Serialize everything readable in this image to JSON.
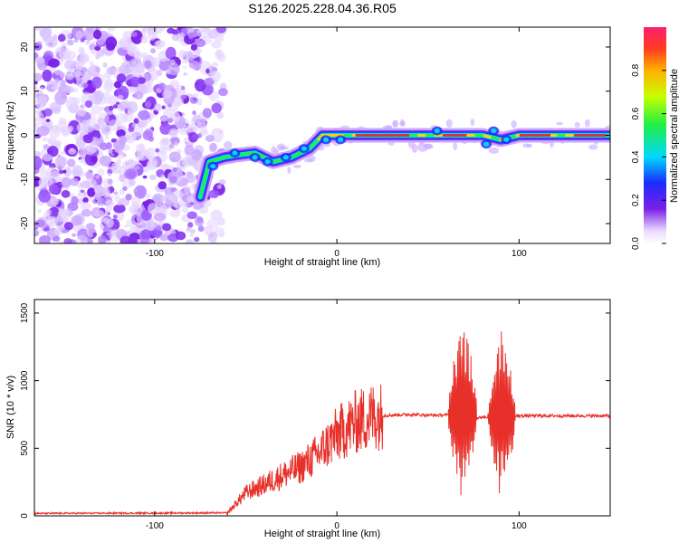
{
  "title": "S126.2025.228.04.36.R05",
  "colors": {
    "snr_line": "#e8302a",
    "ridge_core": "#e03030",
    "speckle": "#8a2be2"
  },
  "chart_data": [
    {
      "type": "heatmap",
      "name": "spectrogram",
      "xlabel": "Height of straight line (km)",
      "ylabel": "Frequency (Hz)",
      "xlim": [
        -166,
        150
      ],
      "ylim": [
        -24.5,
        24.5
      ],
      "xticks": [
        {
          "v": -100,
          "label": "-100"
        },
        {
          "v": 0,
          "label": "0"
        },
        {
          "v": 100,
          "label": "100"
        }
      ],
      "yticks": [
        {
          "v": 20,
          "label": "20"
        },
        {
          "v": 10,
          "label": "10"
        },
        {
          "v": 0,
          "label": "0"
        },
        {
          "v": -10,
          "label": "-10"
        },
        {
          "v": -20,
          "label": "-20"
        }
      ],
      "noise_region_x": [
        -166,
        -60
      ],
      "ridge": [
        {
          "x": -75,
          "f": -14
        },
        {
          "x": -70,
          "f": -6
        },
        {
          "x": -62,
          "f": -5
        },
        {
          "x": -55,
          "f": -4.5
        },
        {
          "x": -45,
          "f": -4
        },
        {
          "x": -35,
          "f": -6
        },
        {
          "x": -25,
          "f": -5
        },
        {
          "x": -15,
          "f": -3
        },
        {
          "x": -8,
          "f": 0
        },
        {
          "x": 0,
          "f": 0
        },
        {
          "x": 10,
          "f": 0
        },
        {
          "x": 30,
          "f": 0
        },
        {
          "x": 50,
          "f": 0
        },
        {
          "x": 70,
          "f": 0
        },
        {
          "x": 80,
          "f": 0
        },
        {
          "x": 90,
          "f": -1
        },
        {
          "x": 100,
          "f": 0
        },
        {
          "x": 120,
          "f": 0
        },
        {
          "x": 150,
          "f": 0
        }
      ],
      "colorbar": {
        "label": "Normalized spectral amplitude",
        "range": [
          0,
          1
        ],
        "ticks": [
          "0.0",
          "0.2",
          "0.4",
          "0.6",
          "0.8"
        ],
        "tick_values": [
          0.0,
          0.2,
          0.4,
          0.6,
          0.8
        ]
      }
    },
    {
      "type": "line",
      "name": "snr",
      "xlabel": "Height of straight line (km)",
      "ylabel": "SNR (10 * v/v)",
      "xlim": [
        -166,
        150
      ],
      "ylim": [
        0,
        1600
      ],
      "xticks": [
        {
          "v": -100,
          "label": "-100"
        },
        {
          "v": 0,
          "label": "0"
        },
        {
          "v": 100,
          "label": "100"
        }
      ],
      "yticks": [
        {
          "v": 0,
          "label": "0"
        },
        {
          "v": 500,
          "label": "500"
        },
        {
          "v": 1000,
          "label": "1000"
        },
        {
          "v": 1500,
          "label": "1500"
        }
      ],
      "envelope": [
        {
          "x": -166,
          "y": 18
        },
        {
          "x": -60,
          "y": 22
        },
        {
          "x": -50,
          "y": 170
        },
        {
          "x": -40,
          "y": 230
        },
        {
          "x": -30,
          "y": 300
        },
        {
          "x": -20,
          "y": 360
        },
        {
          "x": -10,
          "y": 460
        },
        {
          "x": 0,
          "y": 600
        },
        {
          "x": 10,
          "y": 690
        },
        {
          "x": 20,
          "y": 740
        },
        {
          "x": 30,
          "y": 745
        },
        {
          "x": 40,
          "y": 750
        },
        {
          "x": 50,
          "y": 745
        },
        {
          "x": 60,
          "y": 745
        },
        {
          "x": 70,
          "y": 720
        },
        {
          "x": 80,
          "y": 730
        },
        {
          "x": 90,
          "y": 730
        },
        {
          "x": 100,
          "y": 740
        },
        {
          "x": 110,
          "y": 740
        },
        {
          "x": 150,
          "y": 740
        }
      ],
      "bursts": [
        {
          "x0": 61,
          "x1": 77,
          "peak": 1600,
          "min": 70
        },
        {
          "x0": 83,
          "x1": 98,
          "peak": 1420,
          "min": 30
        }
      ]
    }
  ]
}
